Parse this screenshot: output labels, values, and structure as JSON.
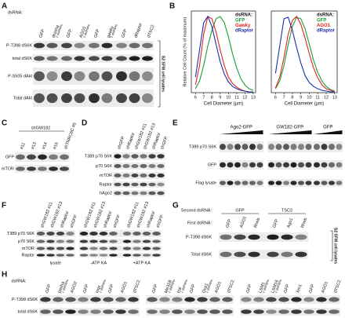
{
  "panel_labels": [
    "A",
    "B",
    "C",
    "D",
    "E",
    "F",
    "G",
    "H"
  ],
  "A": {
    "caption": "dsRNA:",
    "lanes": [
      {
        "label": "GFP"
      },
      {
        "label": "drosha",
        "note": "2 dsRNAs"
      },
      {
        "label": "GFP"
      },
      {
        "label": "AGO1",
        "note": "2 dsRNAs"
      },
      {
        "label": "GFP"
      },
      {
        "label": "gawky",
        "note": "2 dsRNAs"
      },
      {
        "label": "GFP"
      },
      {
        "label": "dRaptor"
      },
      {
        "label": "dTSC2"
      }
    ],
    "rows": [
      "P-T398 dS6K",
      "total dS6K",
      "P-S505 dAkt",
      "Total dAkt"
    ],
    "side_label": "S2 SFM cell lysates"
  },
  "chart_data": [
    {
      "type": "line",
      "legend_title": "dsRNA:",
      "xlabel": "Cell Diameter (µm)",
      "ylabel": "Relative Cell Count (% of maximum)",
      "x": [
        6,
        6.5,
        7,
        7.5,
        8,
        8.5,
        9,
        9.5,
        10,
        10.5,
        11,
        11.5,
        12,
        12.5,
        13
      ],
      "xlim": [
        5.5,
        13.3
      ],
      "xticks": [
        6,
        7,
        8,
        9,
        10,
        11,
        12,
        13
      ],
      "ylim": [
        0,
        105
      ],
      "series": [
        {
          "name": "GFP",
          "color": "#1a9e3a",
          "values": [
            5,
            15,
            35,
            60,
            80,
            95,
            98,
            90,
            72,
            50,
            32,
            18,
            10,
            5,
            3
          ]
        },
        {
          "name": "Gawky",
          "color": "#e0231c",
          "values": [
            10,
            35,
            75,
            98,
            95,
            78,
            55,
            35,
            20,
            12,
            7,
            4,
            2,
            1,
            1
          ]
        },
        {
          "name": "dRaptor",
          "color": "#1b2fa8",
          "values": [
            20,
            55,
            90,
            98,
            85,
            62,
            40,
            24,
            14,
            8,
            5,
            3,
            2,
            1,
            1
          ]
        }
      ]
    },
    {
      "type": "line",
      "legend_title": "dsRNA:",
      "xlabel": "Cell Diameter (µm)",
      "x": [
        6,
        6.5,
        7,
        7.5,
        8,
        8.5,
        9,
        9.5,
        10,
        10.5,
        11,
        11.5,
        12,
        12.5,
        13
      ],
      "xlim": [
        5.5,
        13.3
      ],
      "xticks": [
        6,
        7,
        8,
        9,
        10,
        11,
        12,
        13
      ],
      "ylim": [
        0,
        105
      ],
      "series": [
        {
          "name": "GFP",
          "color": "#1a9e3a",
          "values": [
            5,
            15,
            35,
            62,
            85,
            97,
            95,
            82,
            62,
            42,
            26,
            15,
            8,
            4,
            2
          ]
        },
        {
          "name": "AGO1",
          "color": "#e0231c",
          "values": [
            6,
            20,
            45,
            75,
            93,
            98,
            88,
            70,
            50,
            32,
            19,
            10,
            5,
            3,
            1
          ]
        },
        {
          "name": "dRaptor",
          "color": "#1b2fa8",
          "values": [
            25,
            60,
            95,
            97,
            80,
            58,
            38,
            22,
            13,
            8,
            5,
            3,
            2,
            1,
            1
          ]
        }
      ]
    }
  ],
  "C": {
    "group": "shGW182",
    "lanes": [
      {
        "label": "#11"
      },
      {
        "label": "#13"
      },
      {
        "label": "#14"
      },
      {
        "label": "#15"
      },
      {
        "label": "shTNRC6C #5"
      }
    ],
    "rows": [
      "GFP",
      "mTOR"
    ]
  },
  "D": {
    "lanes": [
      {
        "label": "shGFP"
      },
      {
        "label": "shRaptor"
      },
      {
        "label": "shGW182 #11"
      },
      {
        "label": "shGW182 #13"
      },
      {
        "label": "shRaptor"
      },
      {
        "label": "shGFP"
      }
    ],
    "rows": [
      "T389 p70 S6K",
      "p70 S6K",
      "mTOR",
      "Raptor",
      "hAgo2"
    ]
  },
  "E": {
    "groups": [
      "Ago2-GFP",
      "GW182-GFP",
      "GFP"
    ],
    "rows": [
      "T389 p70 S6K",
      "GFP",
      "Flag lysate"
    ]
  },
  "F": {
    "lanes": [
      {
        "label": "shGW182 #11"
      },
      {
        "label": "shGW182 #13"
      },
      {
        "label": "shRaptor"
      },
      {
        "label": "shGFP"
      },
      {
        "label": "shGW182 #11"
      },
      {
        "label": "shGW182 #13"
      },
      {
        "label": "shRaptor"
      },
      {
        "label": "shGFP"
      },
      {
        "label": "shGW182 #11"
      },
      {
        "label": "shGW182 #13"
      },
      {
        "label": "shRaptor"
      },
      {
        "label": "shGFP"
      }
    ],
    "rows": [
      "T389 p70 S6K",
      "p70 S6K",
      "mTOR",
      "Raptor"
    ],
    "groups": [
      "lysate",
      "-ATP KA",
      "+ATP KA"
    ]
  },
  "G": {
    "second_caption": "Second dsRNA:",
    "second": [
      "GFP",
      "TSC2"
    ],
    "first_caption": "First dsRNA:",
    "lanes": [
      {
        "label": "GFP"
      },
      {
        "label": "AGO1"
      },
      {
        "label": "Rheb"
      },
      {
        "label": "GFP"
      },
      {
        "label": "Ago1"
      },
      {
        "label": "Rheb"
      }
    ],
    "rows": [
      "P-T398 dS6K",
      "Total dS6K"
    ],
    "side_label": "S2 SFM cell lysates"
  },
  "H": {
    "caption": "dsRNA:",
    "lanes": [
      {
        "label": "GFP"
      },
      {
        "label": "pasha",
        "note": "2 dsRNAs"
      },
      {
        "label": "AGO2"
      },
      {
        "label": "GFP"
      },
      {
        "label": "loqs",
        "note": "2 dsRNAs"
      },
      {
        "label": "GFP"
      },
      {
        "label": "AGO1"
      },
      {
        "label": "dTSC2"
      },
      {
        "label": "GFP"
      },
      {
        "label": "Me31B",
        "note": "2 dsRNAs"
      },
      {
        "label": "tral",
        "note": "2 dsRNAs"
      },
      {
        "label": "GFP"
      },
      {
        "label": "Dcp1",
        "note": "2 dsRNAs"
      },
      {
        "label": "AGO1"
      },
      {
        "label": "dTSC2"
      },
      {
        "label": "GFP"
      },
      {
        "label": "LSM1",
        "note": "2 dsRNAs"
      },
      {
        "label": "LSM16",
        "note": "2 dsRNAs"
      },
      {
        "label": "GFP"
      },
      {
        "label": "Xrn1"
      },
      {
        "label": "GFP"
      },
      {
        "label": "AGO1"
      },
      {
        "label": "dTSC2"
      }
    ],
    "rows": [
      "P-T398 dS6K",
      "total dS6K"
    ]
  }
}
